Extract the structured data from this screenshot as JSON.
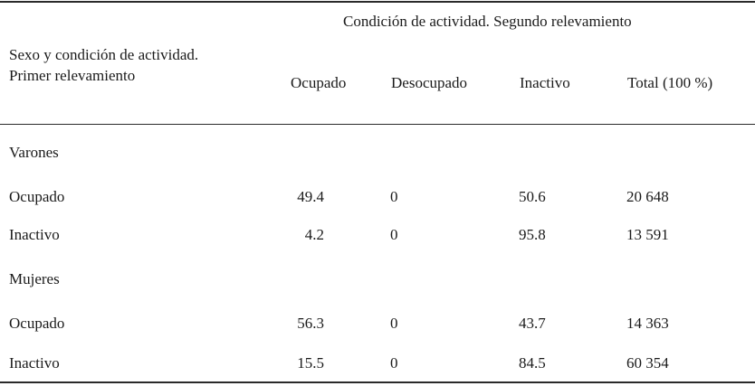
{
  "table": {
    "group_header": "Condición de actividad. Segundo relevamiento",
    "stub_header_line1": "Sexo y condición de actividad.",
    "stub_header_line2": "Primer relevamiento",
    "columns": [
      "Ocupado",
      "Desocupado",
      "Inactivo",
      "Total (100 %)"
    ],
    "sections": [
      {
        "title": "Varones",
        "rows": [
          {
            "label": "Ocupado",
            "values": [
              "49.4",
              "0",
              "50.6",
              "20 648"
            ]
          },
          {
            "label": "Inactivo",
            "values": [
              "4.2",
              "0",
              "95.8",
              "13 591"
            ]
          }
        ]
      },
      {
        "title": "Mujeres",
        "rows": [
          {
            "label": "Ocupado",
            "values": [
              "56.3",
              "0",
              "43.7",
              "14 363"
            ]
          },
          {
            "label": "Inactivo",
            "values": [
              "15.5",
              "0",
              "84.5",
              "60 354"
            ]
          }
        ]
      }
    ]
  }
}
